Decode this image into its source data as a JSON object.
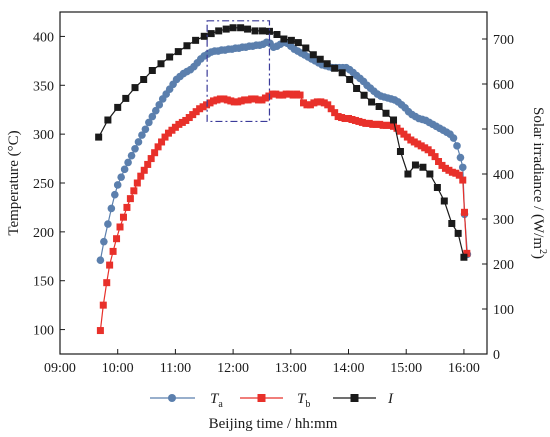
{
  "chart_data": {
    "type": "line",
    "xlabel": "Beijing time / hh:mm",
    "ylabel_left": "Temperature (°C)",
    "ylabel_right_main": "Solar irradiance / (W/m",
    "ylabel_right_sup": "2",
    "ylabel_right_tail": ")",
    "x_ticks": [
      "09:00",
      "10:00",
      "11:00",
      "12:00",
      "13:00",
      "14:00",
      "15:00",
      "16:00"
    ],
    "x_tick_values": [
      9,
      10,
      11,
      12,
      13,
      14,
      15,
      16
    ],
    "xlim": [
      9.0,
      16.4
    ],
    "ylim_left": [
      75,
      425
    ],
    "y_ticks_left": [
      100,
      150,
      200,
      250,
      300,
      350,
      400
    ],
    "ylim_right": [
      0,
      760
    ],
    "y_ticks_right": [
      0,
      100,
      200,
      300,
      400,
      500,
      600,
      700
    ],
    "legend_position": "bottom",
    "highlight_box": {
      "x_range": [
        11.55,
        12.63
      ],
      "y_range_left": [
        313,
        416
      ],
      "color": "#3b3b9a",
      "style": "dash-dot"
    },
    "series": [
      {
        "name": "T",
        "subscript": "a",
        "axis": "left",
        "marker": "circle",
        "color": "#5b7fad",
        "points": [
          [
            9.7,
            171
          ],
          [
            9.76,
            190
          ],
          [
            9.83,
            208
          ],
          [
            9.89,
            224
          ],
          [
            9.95,
            238
          ],
          [
            10.0,
            248
          ],
          [
            10.06,
            256
          ],
          [
            10.12,
            264
          ],
          [
            10.18,
            271
          ],
          [
            10.24,
            278
          ],
          [
            10.3,
            285
          ],
          [
            10.36,
            292
          ],
          [
            10.42,
            299
          ],
          [
            10.48,
            305
          ],
          [
            10.54,
            312
          ],
          [
            10.6,
            318
          ],
          [
            10.66,
            324
          ],
          [
            10.72,
            330
          ],
          [
            10.78,
            336
          ],
          [
            10.84,
            341
          ],
          [
            10.9,
            346
          ],
          [
            10.96,
            351
          ],
          [
            11.02,
            356
          ],
          [
            11.08,
            359
          ],
          [
            11.14,
            362
          ],
          [
            11.2,
            364
          ],
          [
            11.26,
            366
          ],
          [
            11.32,
            369
          ],
          [
            11.38,
            373
          ],
          [
            11.44,
            377
          ],
          [
            11.5,
            380
          ],
          [
            11.56,
            382
          ],
          [
            11.62,
            384
          ],
          [
            11.68,
            385
          ],
          [
            11.74,
            385
          ],
          [
            11.8,
            386
          ],
          [
            11.86,
            386
          ],
          [
            11.92,
            387
          ],
          [
            11.98,
            387
          ],
          [
            12.04,
            388
          ],
          [
            12.1,
            388
          ],
          [
            12.16,
            389
          ],
          [
            12.22,
            389
          ],
          [
            12.28,
            390
          ],
          [
            12.34,
            390
          ],
          [
            12.4,
            391
          ],
          [
            12.46,
            391
          ],
          [
            12.52,
            392
          ],
          [
            12.58,
            394
          ],
          [
            12.64,
            393
          ],
          [
            12.7,
            389
          ],
          [
            12.76,
            390
          ],
          [
            12.82,
            392
          ],
          [
            12.88,
            394
          ],
          [
            12.94,
            393
          ],
          [
            13.0,
            390
          ],
          [
            13.06,
            387
          ],
          [
            13.12,
            385
          ],
          [
            13.18,
            383
          ],
          [
            13.24,
            381
          ],
          [
            13.3,
            379
          ],
          [
            13.36,
            377
          ],
          [
            13.42,
            375
          ],
          [
            13.48,
            373
          ],
          [
            13.54,
            371
          ],
          [
            13.6,
            370
          ],
          [
            13.66,
            369
          ],
          [
            13.72,
            368
          ],
          [
            13.78,
            368
          ],
          [
            13.84,
            368
          ],
          [
            13.9,
            368
          ],
          [
            13.96,
            368
          ],
          [
            14.02,
            366
          ],
          [
            14.08,
            363
          ],
          [
            14.14,
            360
          ],
          [
            14.2,
            357
          ],
          [
            14.26,
            354
          ],
          [
            14.32,
            350
          ],
          [
            14.38,
            347
          ],
          [
            14.44,
            344
          ],
          [
            14.5,
            341
          ],
          [
            14.56,
            339
          ],
          [
            14.62,
            338
          ],
          [
            14.68,
            337
          ],
          [
            14.74,
            336
          ],
          [
            14.8,
            335
          ],
          [
            14.86,
            333
          ],
          [
            14.92,
            330
          ],
          [
            14.98,
            327
          ],
          [
            15.04,
            323
          ],
          [
            15.1,
            320
          ],
          [
            15.16,
            318
          ],
          [
            15.22,
            316
          ],
          [
            15.28,
            315
          ],
          [
            15.34,
            314
          ],
          [
            15.4,
            312
          ],
          [
            15.46,
            310
          ],
          [
            15.52,
            308
          ],
          [
            15.58,
            306
          ],
          [
            15.64,
            304
          ],
          [
            15.7,
            302
          ],
          [
            15.76,
            300
          ],
          [
            15.82,
            296
          ],
          [
            15.88,
            288
          ],
          [
            15.94,
            276
          ],
          [
            15.98,
            266
          ],
          [
            16.01,
            218
          ],
          [
            16.06,
            177
          ]
        ]
      },
      {
        "name": "T",
        "subscript": "b",
        "axis": "left",
        "marker": "square",
        "color": "#e8302a",
        "points": [
          [
            9.7,
            99
          ],
          [
            9.75,
            125
          ],
          [
            9.81,
            148
          ],
          [
            9.86,
            166
          ],
          [
            9.92,
            180
          ],
          [
            9.98,
            193
          ],
          [
            10.04,
            205
          ],
          [
            10.1,
            215
          ],
          [
            10.16,
            225
          ],
          [
            10.22,
            234
          ],
          [
            10.28,
            242
          ],
          [
            10.34,
            250
          ],
          [
            10.4,
            257
          ],
          [
            10.46,
            263
          ],
          [
            10.52,
            269
          ],
          [
            10.58,
            275
          ],
          [
            10.64,
            281
          ],
          [
            10.7,
            287
          ],
          [
            10.76,
            292
          ],
          [
            10.82,
            297
          ],
          [
            10.88,
            301
          ],
          [
            10.94,
            304
          ],
          [
            11.0,
            307
          ],
          [
            11.06,
            310
          ],
          [
            11.12,
            312
          ],
          [
            11.18,
            314
          ],
          [
            11.24,
            317
          ],
          [
            11.3,
            320
          ],
          [
            11.36,
            323
          ],
          [
            11.42,
            326
          ],
          [
            11.48,
            328
          ],
          [
            11.54,
            330
          ],
          [
            11.6,
            332
          ],
          [
            11.66,
            334
          ],
          [
            11.72,
            335
          ],
          [
            11.78,
            336
          ],
          [
            11.84,
            336
          ],
          [
            11.9,
            335
          ],
          [
            11.96,
            334
          ],
          [
            12.02,
            333
          ],
          [
            12.08,
            333
          ],
          [
            12.14,
            334
          ],
          [
            12.2,
            335
          ],
          [
            12.26,
            335
          ],
          [
            12.32,
            336
          ],
          [
            12.38,
            336
          ],
          [
            12.44,
            335
          ],
          [
            12.5,
            335
          ],
          [
            12.56,
            337
          ],
          [
            12.62,
            339
          ],
          [
            12.68,
            341
          ],
          [
            12.74,
            341
          ],
          [
            12.8,
            340
          ],
          [
            12.86,
            340
          ],
          [
            12.92,
            341
          ],
          [
            12.98,
            341
          ],
          [
            13.04,
            340
          ],
          [
            13.1,
            341
          ],
          [
            13.16,
            340
          ],
          [
            13.22,
            332
          ],
          [
            13.28,
            330
          ],
          [
            13.34,
            330
          ],
          [
            13.4,
            332
          ],
          [
            13.46,
            333
          ],
          [
            13.52,
            333
          ],
          [
            13.58,
            332
          ],
          [
            13.64,
            330
          ],
          [
            13.7,
            326
          ],
          [
            13.76,
            322
          ],
          [
            13.82,
            318
          ],
          [
            13.88,
            317
          ],
          [
            13.94,
            316
          ],
          [
            14.0,
            316
          ],
          [
            14.06,
            315
          ],
          [
            14.12,
            314
          ],
          [
            14.18,
            313
          ],
          [
            14.24,
            312
          ],
          [
            14.3,
            311
          ],
          [
            14.36,
            311
          ],
          [
            14.42,
            310
          ],
          [
            14.48,
            310
          ],
          [
            14.54,
            310
          ],
          [
            14.6,
            309
          ],
          [
            14.66,
            309
          ],
          [
            14.72,
            309
          ],
          [
            14.78,
            308
          ],
          [
            14.84,
            306
          ],
          [
            14.9,
            303
          ],
          [
            14.96,
            300
          ],
          [
            15.02,
            297
          ],
          [
            15.08,
            294
          ],
          [
            15.14,
            292
          ],
          [
            15.2,
            290
          ],
          [
            15.26,
            288
          ],
          [
            15.32,
            286
          ],
          [
            15.38,
            284
          ],
          [
            15.44,
            281
          ],
          [
            15.5,
            277
          ],
          [
            15.56,
            272
          ],
          [
            15.62,
            268
          ],
          [
            15.68,
            265
          ],
          [
            15.74,
            263
          ],
          [
            15.8,
            261
          ],
          [
            15.86,
            260
          ],
          [
            15.92,
            258
          ],
          [
            15.98,
            253
          ],
          [
            16.01,
            220
          ],
          [
            16.05,
            178
          ]
        ]
      },
      {
        "name": "I",
        "subscript": "",
        "axis": "right",
        "marker": "square",
        "color": "#1a1a1a",
        "points": [
          [
            9.67,
            482
          ],
          [
            9.83,
            520
          ],
          [
            10.0,
            548
          ],
          [
            10.14,
            568
          ],
          [
            10.3,
            592
          ],
          [
            10.45,
            610
          ],
          [
            10.6,
            630
          ],
          [
            10.75,
            645
          ],
          [
            10.9,
            660
          ],
          [
            11.05,
            672
          ],
          [
            11.2,
            685
          ],
          [
            11.35,
            697
          ],
          [
            11.5,
            706
          ],
          [
            11.62,
            712
          ],
          [
            11.75,
            718
          ],
          [
            11.88,
            722
          ],
          [
            12.0,
            725
          ],
          [
            12.13,
            725
          ],
          [
            12.25,
            722
          ],
          [
            12.38,
            718
          ],
          [
            12.51,
            718
          ],
          [
            12.63,
            717
          ],
          [
            12.76,
            710
          ],
          [
            12.88,
            700
          ],
          [
            13.01,
            697
          ],
          [
            13.13,
            692
          ],
          [
            13.26,
            680
          ],
          [
            13.39,
            665
          ],
          [
            13.51,
            655
          ],
          [
            13.63,
            645
          ],
          [
            13.76,
            635
          ],
          [
            13.89,
            625
          ],
          [
            14.02,
            610
          ],
          [
            14.14,
            590
          ],
          [
            14.27,
            575
          ],
          [
            14.4,
            560
          ],
          [
            14.53,
            550
          ],
          [
            14.65,
            535
          ],
          [
            14.78,
            520
          ],
          [
            14.9,
            450
          ],
          [
            15.03,
            400
          ],
          [
            15.16,
            420
          ],
          [
            15.29,
            415
          ],
          [
            15.41,
            400
          ],
          [
            15.54,
            370
          ],
          [
            15.66,
            340
          ],
          [
            15.79,
            290
          ],
          [
            15.9,
            268
          ],
          [
            16.0,
            215
          ]
        ]
      }
    ]
  }
}
